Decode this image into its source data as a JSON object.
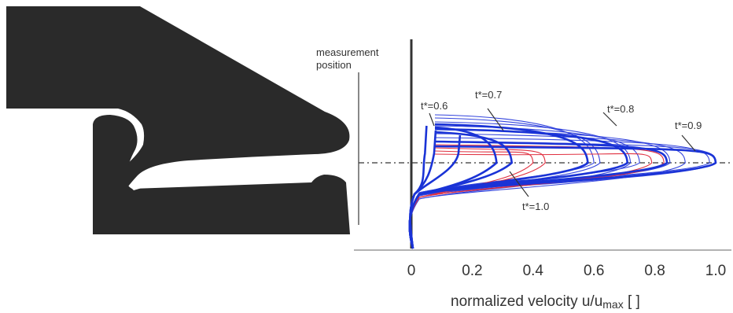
{
  "figure": {
    "measurement_label_line1": "measurement",
    "measurement_label_line2": "position",
    "x_axis_label_main": "normalized velocity u/u",
    "x_axis_label_sub": "max",
    "x_axis_label_unit": " [ ]",
    "annotations": {
      "t06": "t*=0.6",
      "t07": "t*=0.7",
      "t08": "t*=0.8",
      "t09": "t*=0.9",
      "t10": "t*=1.0"
    },
    "colors": {
      "geometry": "#2a2a2a",
      "thick_profiles": "#1a33d6",
      "thin_profiles": "#3344dd",
      "red_profiles": "#e03040",
      "axis": "#333333"
    }
  },
  "chart_data": {
    "type": "line",
    "xlabel": "normalized velocity u/umax [ ]",
    "x_ticks": [
      "0",
      "0.2",
      "0.4",
      "0.6",
      "0.8",
      "1.0"
    ],
    "x_tick_values": [
      0,
      0.2,
      0.4,
      0.6,
      0.8,
      1.0
    ],
    "xlim": [
      -0.2,
      1.05
    ],
    "y_description": "position across gap (unlabelled)",
    "series": [
      {
        "group": "t06",
        "style": "thick",
        "values": [
          0.05,
          0.08,
          0.16
        ]
      },
      {
        "group": "t07",
        "style": "thick",
        "values": [
          0.28,
          0.33
        ]
      },
      {
        "group": "t08",
        "style": "thick",
        "values": [
          0.58,
          0.71
        ]
      },
      {
        "group": "t09",
        "style": "thick",
        "values": [
          0.84,
          1.0
        ]
      },
      {
        "group": "t10",
        "style": "red",
        "values": [
          0.44,
          0.83
        ]
      }
    ]
  }
}
